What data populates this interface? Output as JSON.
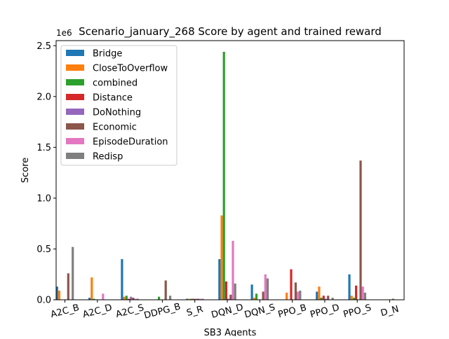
{
  "chart_data": {
    "type": "bar",
    "title": "Scenario_january_268 Score by agent and trained reward",
    "xlabel": "SB3 Agents",
    "ylabel": "Score",
    "y_multiplier_label": "1e6",
    "y_multiplier": 1000000,
    "ylim": [
      0,
      2.55
    ],
    "yticks": [
      0.0,
      0.5,
      1.0,
      1.5,
      2.0,
      2.5
    ],
    "ytick_labels": [
      "0.0",
      "0.5",
      "1.0",
      "1.5",
      "2.0",
      "2.5"
    ],
    "grid": false,
    "legend_position": "top-left",
    "categories": [
      "A2C_B",
      "A2C_D",
      "A2C_S",
      "DDPG_B",
      "S_R",
      "DQN_D",
      "DQN_S",
      "PPO_B",
      "PPO_D",
      "PPO_S",
      "D_N"
    ],
    "series": [
      {
        "name": "Bridge",
        "color": "#1f77b4",
        "values": [
          0.13,
          0.02,
          0.4,
          0,
          0.01,
          0.4,
          0.15,
          0,
          0.08,
          0.25,
          0
        ]
      },
      {
        "name": "CloseToOverflow",
        "color": "#ff7f0e",
        "values": [
          0.09,
          0.22,
          0.03,
          0,
          0.01,
          0.83,
          0.02,
          0.07,
          0.13,
          0.04,
          0
        ]
      },
      {
        "name": "combined",
        "color": "#2ca02c",
        "values": [
          0,
          0.01,
          0.04,
          0.03,
          0.01,
          2.44,
          0.06,
          0,
          0.02,
          0.02,
          0
        ]
      },
      {
        "name": "Distance",
        "color": "#d62728",
        "values": [
          0,
          0,
          0.01,
          0,
          0.01,
          0.18,
          0,
          0.3,
          0.04,
          0.14,
          0
        ]
      },
      {
        "name": "DoNothing",
        "color": "#9467bd",
        "values": [
          0,
          0,
          0.03,
          0,
          0.01,
          0.01,
          0,
          0,
          0.01,
          0,
          0
        ]
      },
      {
        "name": "Economic",
        "color": "#8c564b",
        "values": [
          0.26,
          0,
          0.02,
          0.19,
          0.01,
          0.05,
          0.08,
          0.17,
          0.04,
          1.37,
          0.01
        ]
      },
      {
        "name": "EpisodeDuration",
        "color": "#e377c2",
        "values": [
          0,
          0.06,
          0.01,
          0,
          0.01,
          0.58,
          0.25,
          0.08,
          0,
          0.13,
          0
        ]
      },
      {
        "name": "Redisp",
        "color": "#7f7f7f",
        "values": [
          0.52,
          0,
          0.01,
          0.04,
          0.01,
          0.16,
          0.21,
          0.09,
          0.02,
          0.07,
          0
        ]
      }
    ]
  }
}
